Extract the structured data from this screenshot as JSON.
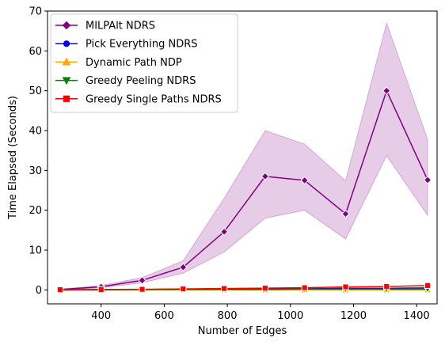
{
  "chart_data": {
    "type": "line",
    "title": "",
    "xlabel": "Number of Edges",
    "ylabel": "Time Elapsed (Seconds)",
    "xlim": [
      230,
      1465
    ],
    "ylim": [
      -3.5,
      70
    ],
    "xticks": [
      400,
      600,
      800,
      1000,
      1200,
      1400
    ],
    "yticks": [
      0,
      10,
      20,
      30,
      40,
      50,
      60,
      70
    ],
    "grid": false,
    "legend_position": "top-left",
    "x": [
      270,
      400,
      530,
      660,
      790,
      920,
      1045,
      1175,
      1305,
      1435
    ],
    "series": [
      {
        "name": "MILPAlt NDRS",
        "color": "#800080",
        "marker": "diamond",
        "values": [
          0.1,
          0.8,
          2.4,
          5.7,
          14.6,
          28.5,
          27.5,
          19.1,
          50.0,
          27.6
        ],
        "band_lower": [
          0.0,
          0.5,
          1.8,
          4.2,
          9.5,
          18.0,
          20.0,
          12.8,
          33.7,
          18.7
        ],
        "band_upper": [
          0.2,
          1.1,
          3.1,
          7.3,
          23.0,
          40.0,
          36.6,
          27.4,
          67.0,
          37.8
        ]
      },
      {
        "name": "Pick Everything NDRS",
        "color": "#0000ff",
        "marker": "circle",
        "values": [
          0.0,
          0.1,
          0.1,
          0.2,
          0.2,
          0.3,
          0.3,
          0.4,
          0.4,
          0.5
        ]
      },
      {
        "name": "Dynamic Path NDP",
        "color": "#ffa500",
        "marker": "triangle-up",
        "values": [
          0.0,
          0.0,
          0.0,
          0.0,
          0.0,
          0.0,
          0.0,
          0.0,
          0.0,
          0.0
        ]
      },
      {
        "name": "Greedy Peeling NDRS",
        "color": "#008000",
        "marker": "triangle-down",
        "values": [
          0.0,
          0.0,
          0.1,
          0.1,
          0.1,
          0.1,
          0.2,
          0.2,
          0.2,
          0.2
        ]
      },
      {
        "name": "Greedy Single Paths NDRS",
        "color": "#ff0000",
        "marker": "square",
        "values": [
          0.05,
          0.1,
          0.15,
          0.25,
          0.35,
          0.45,
          0.55,
          0.75,
          0.85,
          1.1
        ]
      }
    ]
  }
}
